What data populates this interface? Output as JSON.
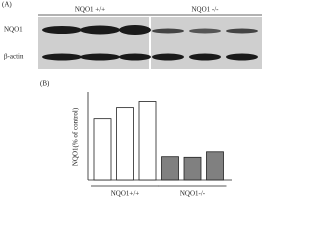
{
  "panel_a": {
    "label": "(A)",
    "groups": [
      "NQO1 +/+",
      "NQO1 -/-"
    ],
    "rows": [
      "NQO1",
      "β-actin"
    ]
  },
  "chart_data": {
    "type": "bar",
    "panel_label": "(B)",
    "y_label": "NQO1(% of control)",
    "categories": [
      null,
      null,
      null,
      null,
      null,
      null
    ],
    "values": [
      100,
      118,
      128,
      38,
      37,
      46
    ],
    "colors": [
      "#ffffff",
      "#ffffff",
      "#ffffff",
      "#808080",
      "#808080",
      "#808080"
    ],
    "groups": [
      {
        "name": "NQO1+/+",
        "size": 3
      },
      {
        "name": "NQO1-/-",
        "size": 3
      }
    ],
    "ylim": [
      0,
      150
    ]
  }
}
